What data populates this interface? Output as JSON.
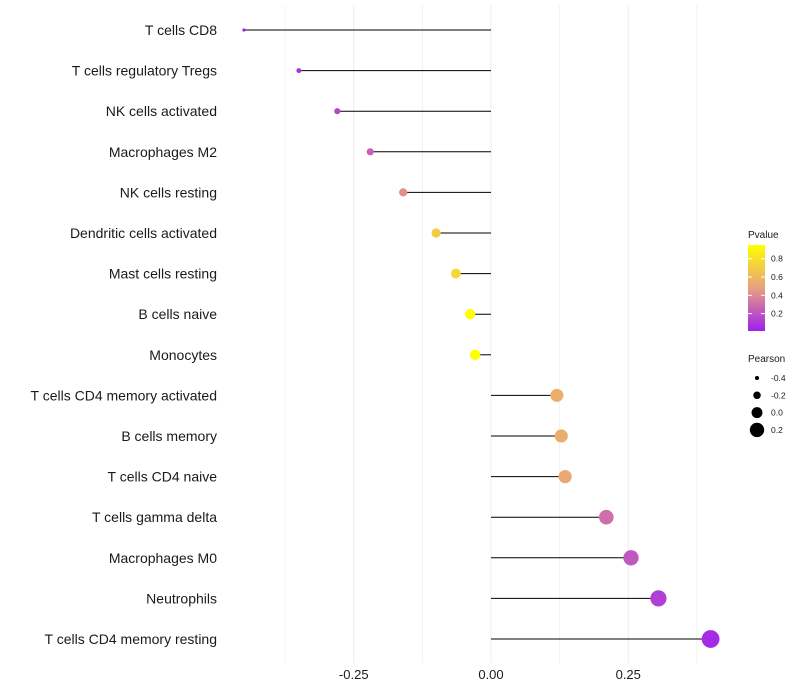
{
  "chart_data": {
    "type": "lollipop",
    "categories": [
      "T cells CD8",
      "T cells regulatory  Tregs",
      "NK cells activated",
      "Macrophages M2",
      "NK cells resting",
      "Dendritic cells activated",
      "Mast cells resting",
      "B cells naive",
      "Monocytes",
      "T cells CD4 memory activated",
      "B cells memory",
      "T cells CD4 naive",
      "T cells gamma delta",
      "Macrophages M0",
      "Neutrophils",
      "T cells CD4 memory resting"
    ],
    "pearson": [
      -0.45,
      -0.35,
      -0.28,
      -0.22,
      -0.16,
      -0.1,
      -0.064,
      -0.038,
      -0.029,
      0.12,
      0.128,
      0.135,
      0.21,
      0.255,
      0.305,
      0.4
    ],
    "pvalue": [
      0.01,
      0.08,
      0.15,
      0.25,
      0.42,
      0.7,
      0.75,
      0.95,
      0.95,
      0.55,
      0.55,
      0.52,
      0.3,
      0.22,
      0.12,
      0.05
    ],
    "x_ticks": [
      -0.25,
      0.0,
      0.25
    ],
    "x_tick_labels": [
      "-0.25",
      "0.00",
      "0.25"
    ],
    "xlim": [
      -0.5,
      0.44
    ],
    "xlabel": "",
    "ylabel": "",
    "grid": true,
    "legend_color": {
      "title": "Pvalue",
      "range": [
        0.01,
        0.95
      ],
      "ticks": [
        0.8,
        0.6,
        0.4,
        0.2
      ],
      "tick_labels": [
        "0.8",
        "0.6",
        "0.4",
        "0.2"
      ],
      "low_color": "#a020f0",
      "mid_color": "#e8a080",
      "high_color": "#ffff00"
    },
    "legend_size": {
      "title": "Pearson",
      "values": [
        -0.4,
        -0.2,
        0.0,
        0.2
      ],
      "labels": [
        "-0.4",
        "-0.2",
        "0.0",
        "0.2"
      ]
    },
    "legend_position": "right"
  }
}
